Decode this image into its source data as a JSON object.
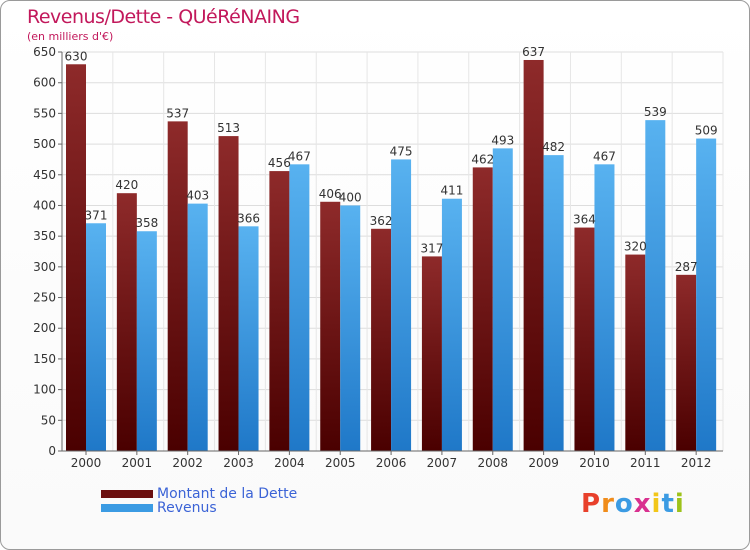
{
  "title": "Revenus/Dette - QUéRéNAING",
  "subtitle": "(en milliers d'€)",
  "legend": {
    "debt_label": "Montant de la Dette",
    "revenue_label": "Revenus",
    "debt_color": "#8b1c1c",
    "revenue_color": "#3b9be3"
  },
  "logo": {
    "letters": [
      "P",
      "r",
      "o",
      "x",
      "i",
      "t",
      "i"
    ],
    "colors": [
      "#e8402b",
      "#f08c1a",
      "#3b9be3",
      "#d9308f",
      "#f2c618",
      "#3b9be3",
      "#9dc21a"
    ]
  },
  "chart_data": {
    "type": "bar",
    "title": "Revenus/Dette - QUéRéNAING",
    "subtitle": "(en milliers d'€)",
    "categories": [
      "2000",
      "2001",
      "2002",
      "2003",
      "2004",
      "2005",
      "2006",
      "2007",
      "2008",
      "2009",
      "2010",
      "2011",
      "2012"
    ],
    "series": [
      {
        "name": "Montant de la Dette",
        "values": [
          630,
          420,
          537,
          513,
          456,
          406,
          362,
          317,
          462,
          637,
          364,
          320,
          287
        ]
      },
      {
        "name": "Revenus",
        "values": [
          371,
          358,
          403,
          366,
          467,
          400,
          475,
          411,
          493,
          482,
          467,
          539,
          509
        ]
      }
    ],
    "ylim": [
      0,
      650
    ],
    "yticks": [
      0,
      50,
      100,
      150,
      200,
      250,
      300,
      350,
      400,
      450,
      500,
      550,
      600,
      650
    ],
    "grid": true,
    "legend_position": "bottom-left"
  }
}
